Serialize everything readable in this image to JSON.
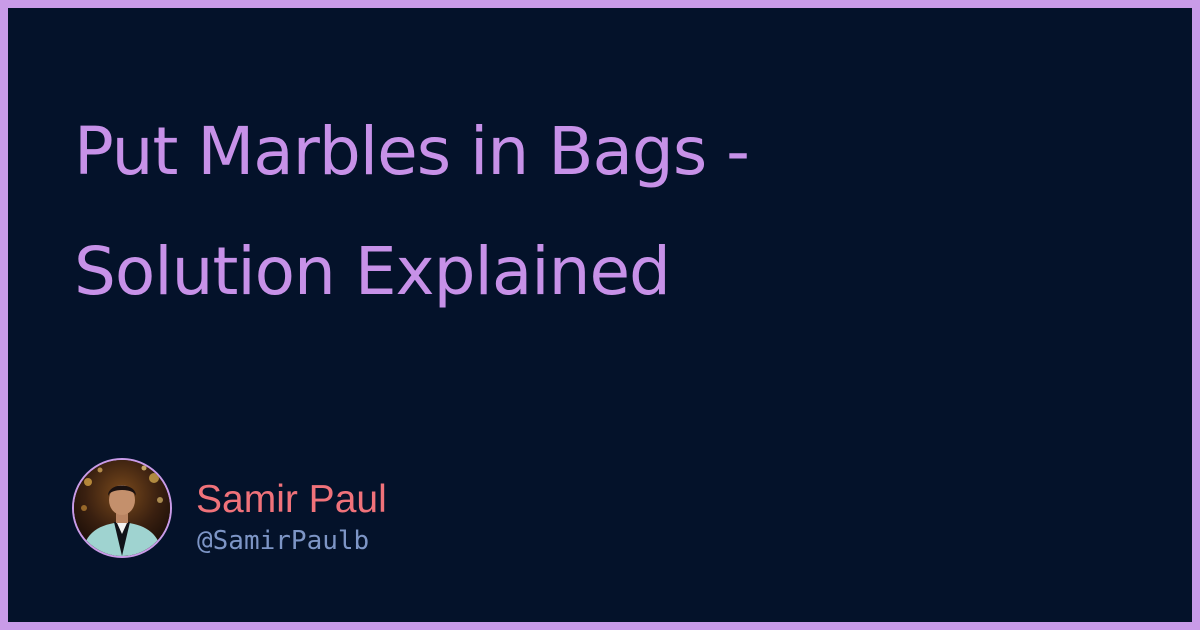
{
  "title_lines": [
    "Put Marbles in Bags -",
    "Solution Explained"
  ],
  "author": {
    "name": "Samir Paul",
    "handle": "@SamirPaulb"
  },
  "colors": {
    "frame": "#c99be8",
    "background": "#04122a",
    "title": "#c791e8",
    "author_name": "#f0727a",
    "author_handle": "#7d95c6"
  }
}
